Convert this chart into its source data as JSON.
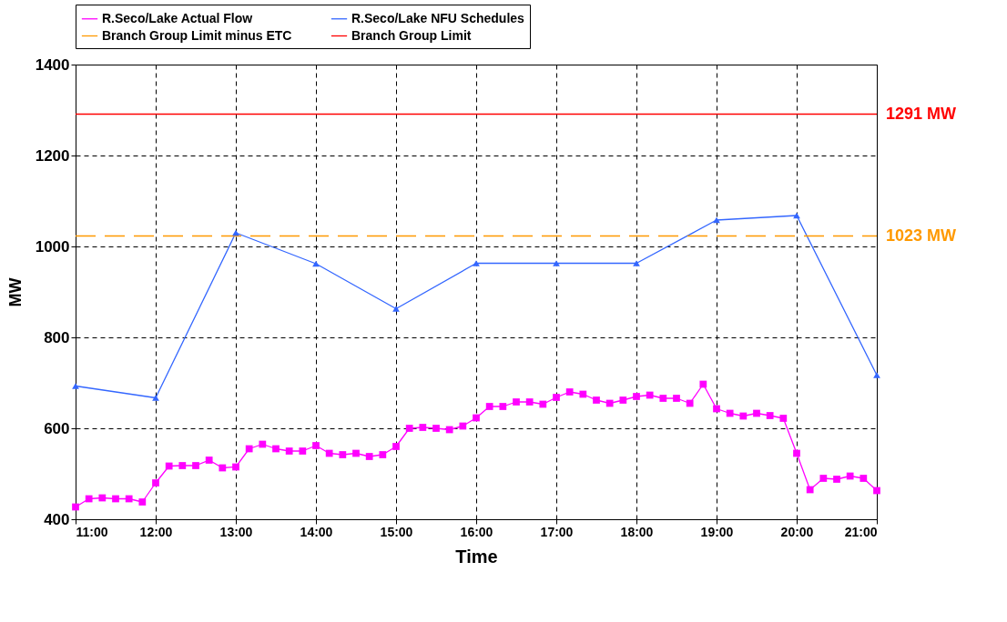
{
  "chart_data": {
    "type": "line",
    "xlabel": "Time",
    "ylabel": "MW",
    "x": [
      11,
      11.1667,
      11.3333,
      11.5,
      11.6667,
      11.8333,
      12,
      12.1667,
      12.3333,
      12.5,
      12.6667,
      12.8333,
      13,
      13.1667,
      13.3333,
      13.5,
      13.6667,
      13.8333,
      14,
      14.1667,
      14.3333,
      14.5,
      14.6667,
      14.8333,
      15,
      15.1667,
      15.3333,
      15.5,
      15.6667,
      15.8333,
      16,
      16.1667,
      16.3333,
      16.5,
      16.6667,
      16.8333,
      17,
      17.1667,
      17.3333,
      17.5,
      17.6667,
      17.8333,
      18,
      18.1667,
      18.3333,
      18.5,
      18.6667,
      18.8333,
      19,
      19.1667,
      19.3333,
      19.5,
      19.6667,
      19.8333,
      20,
      20.1667,
      20.3333,
      20.5,
      20.6667,
      20.8333,
      21
    ],
    "series": [
      {
        "name": "R.Seco/Lake Actual Flow",
        "color": "#ff00ff",
        "marker": "square",
        "values": [
          427,
          445,
          447,
          445,
          445,
          438,
          480,
          517,
          518,
          518,
          530,
          513,
          515,
          555,
          565,
          555,
          550,
          550,
          562,
          545,
          542,
          545,
          538,
          542,
          560,
          600,
          602,
          600,
          597,
          605,
          623,
          648,
          648,
          658,
          658,
          653,
          668,
          680,
          675,
          662,
          655,
          662,
          670,
          673,
          666,
          666,
          655,
          697,
          643,
          633,
          627,
          633,
          628,
          622,
          545,
          465,
          490,
          488,
          495,
          490,
          463
        ]
      },
      {
        "name": "R.Seco/Lake NFU Schedules",
        "color": "#3366ff",
        "marker": "triangle",
        "x": [
          11,
          12,
          13,
          14,
          15,
          16,
          17,
          18,
          19,
          20,
          21
        ],
        "values": [
          693,
          667,
          1030,
          962,
          863,
          963,
          963,
          963,
          1058,
          1068,
          717
        ]
      },
      {
        "name": "Branch Group Limit minus ETC",
        "color": "#ff9900",
        "marker": "none",
        "line_style": "dashed",
        "x": [
          11,
          21
        ],
        "values": [
          1023,
          1023
        ]
      },
      {
        "name": "Branch Group Limit",
        "color": "#ff0000",
        "marker": "none",
        "x": [
          11,
          21
        ],
        "values": [
          1291,
          1291
        ]
      }
    ],
    "annotations": [
      {
        "text": "1291 MW",
        "x": 21,
        "y": 1291
      },
      {
        "text": "1023 MW",
        "x": 21,
        "y": 1023
      }
    ],
    "xlim": [
      11,
      21
    ],
    "xticks": [
      {
        "value": 11,
        "label": "11:00"
      },
      {
        "value": 12,
        "label": "12:00"
      },
      {
        "value": 13,
        "label": "13:00"
      },
      {
        "value": 14,
        "label": "14:00"
      },
      {
        "value": 15,
        "label": "15:00"
      },
      {
        "value": 16,
        "label": "16:00"
      },
      {
        "value": 17,
        "label": "17:00"
      },
      {
        "value": 18,
        "label": "18:00"
      },
      {
        "value": 19,
        "label": "19:00"
      },
      {
        "value": 20,
        "label": "20:00"
      },
      {
        "value": 21,
        "label": "21:00"
      }
    ],
    "ylim": [
      400,
      1400
    ],
    "yticks": [
      400,
      600,
      800,
      1000,
      1200,
      1400
    ],
    "grid": true,
    "legend": "top"
  }
}
